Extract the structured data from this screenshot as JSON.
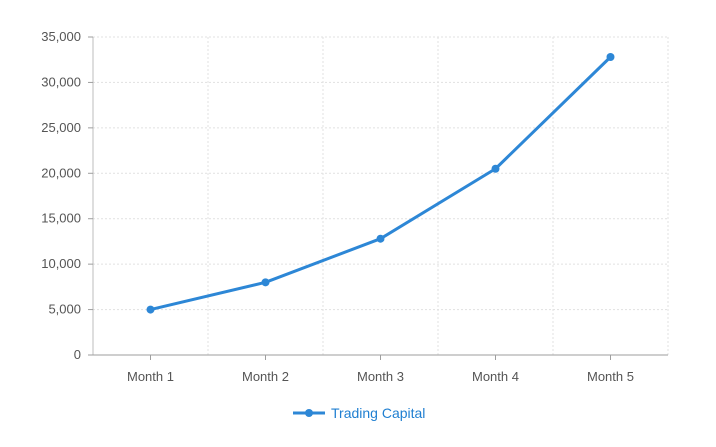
{
  "chart_data": {
    "type": "line",
    "categories": [
      "Month 1",
      "Month 2",
      "Month 3",
      "Month 4",
      "Month 5"
    ],
    "series": [
      {
        "name": "Trading Capital",
        "values": [
          5000,
          8000,
          12800,
          20500,
          32800
        ],
        "color": "#2d87d6"
      }
    ],
    "y_ticks": [
      "0",
      "5,000",
      "10,000",
      "15,000",
      "20,000",
      "25,000",
      "30,000",
      "35,000"
    ],
    "ylim": [
      0,
      35000
    ],
    "grid": true,
    "legend_position": "bottom-center"
  }
}
